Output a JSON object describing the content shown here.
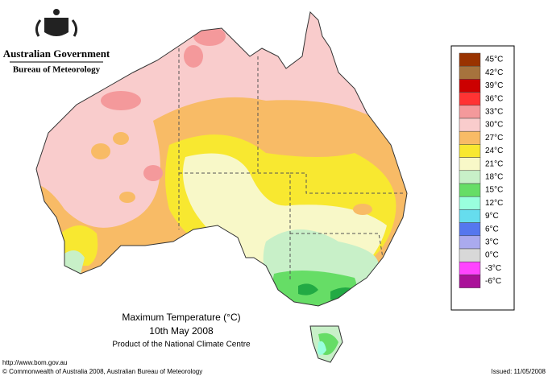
{
  "header": {
    "line1": "Australian Government",
    "line2": "Bureau of Meteorology"
  },
  "legend": {
    "items": [
      {
        "label": "45°C",
        "color": "#993300"
      },
      {
        "label": "42°C",
        "color": "#a6733d"
      },
      {
        "label": "39°C",
        "color": "#cc0000"
      },
      {
        "label": "36°C",
        "color": "#ff3333"
      },
      {
        "label": "33°C",
        "color": "#f4999b"
      },
      {
        "label": "30°C",
        "color": "#f9cccc"
      },
      {
        "label": "27°C",
        "color": "#f8bb66"
      },
      {
        "label": "24°C",
        "color": "#f8e830"
      },
      {
        "label": "21°C",
        "color": "#f8f8c8"
      },
      {
        "label": "18°C",
        "color": "#c8f0c8"
      },
      {
        "label": "15°C",
        "color": "#66dd66"
      },
      {
        "label": "12°C",
        "color": "#99ffdd"
      },
      {
        "label": "9°C",
        "color": "#66ddee"
      },
      {
        "label": "6°C",
        "color": "#5577ee"
      },
      {
        "label": "3°C",
        "color": "#aaaaee"
      },
      {
        "label": "0°C",
        "color": "#d8d8d8"
      },
      {
        "label": "-3°C",
        "color": "#ff44ff"
      },
      {
        "label": "-6°C",
        "color": "#aa1199"
      }
    ]
  },
  "caption": {
    "title": "Maximum Temperature (°C)",
    "date": "10th May 2008",
    "product": "Product of the National Climate Centre"
  },
  "footer": {
    "url": "http://www.bom.gov.au",
    "copyright": "© Commonwealth of Australia 2008, Australian Bureau of Meteorology",
    "issued": "Issued: 11/05/2008"
  }
}
